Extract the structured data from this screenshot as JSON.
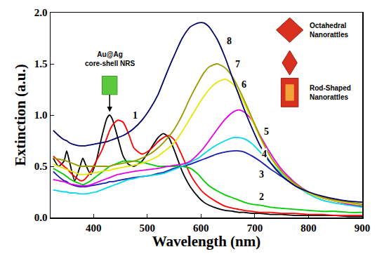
{
  "chart_data": {
    "type": "line",
    "x_label": "Wavelength (nm)",
    "y_label": "Extinction (a.u.)",
    "x": [
      325,
      335,
      345,
      350,
      355,
      365,
      375,
      380,
      385,
      395,
      405,
      415,
      425,
      430,
      435,
      445,
      455,
      465,
      475,
      490,
      505,
      520,
      530,
      540,
      550,
      565,
      580,
      595,
      605,
      615,
      630,
      645,
      660,
      670,
      680,
      695,
      710,
      730,
      750,
      775,
      800,
      825,
      850,
      875,
      900
    ],
    "series": [
      {
        "name": "Au@Ag core-shell NRS",
        "color": "#000000",
        "label_at": [
          430,
          1.55
        ],
        "values": [
          0.58,
          0.5,
          0.55,
          0.65,
          0.55,
          0.36,
          0.5,
          0.58,
          0.52,
          0.42,
          0.55,
          0.78,
          0.97,
          1.0,
          0.96,
          0.78,
          0.6,
          0.52,
          0.5,
          0.55,
          0.66,
          0.78,
          0.82,
          0.78,
          0.66,
          0.45,
          0.3,
          0.2,
          0.15,
          0.12,
          0.09,
          0.07,
          0.06,
          0.05,
          0.05,
          0.04,
          0.04,
          0.03,
          0.03,
          0.02,
          0.02,
          0.02,
          0.02,
          0.01,
          0.01
        ]
      },
      {
        "name": "1",
        "color": "#ff0000",
        "label_at": [
          478,
          1.0
        ],
        "values": [
          0.6,
          0.55,
          0.5,
          0.48,
          0.45,
          0.4,
          0.36,
          0.36,
          0.38,
          0.45,
          0.55,
          0.65,
          0.78,
          0.85,
          0.9,
          0.95,
          0.93,
          0.82,
          0.68,
          0.62,
          0.66,
          0.74,
          0.78,
          0.8,
          0.76,
          0.6,
          0.42,
          0.3,
          0.24,
          0.2,
          0.15,
          0.11,
          0.09,
          0.08,
          0.07,
          0.06,
          0.05,
          0.05,
          0.04,
          0.04,
          0.03,
          0.03,
          0.02,
          0.02,
          0.02
        ]
      },
      {
        "name": "2",
        "color": "#00cc00",
        "label_at": [
          712,
          0.2
        ],
        "values": [
          0.48,
          0.45,
          0.42,
          0.4,
          0.38,
          0.35,
          0.33,
          0.32,
          0.33,
          0.36,
          0.4,
          0.44,
          0.48,
          0.5,
          0.51,
          0.53,
          0.55,
          0.55,
          0.55,
          0.54,
          0.52,
          0.5,
          0.5,
          0.5,
          0.5,
          0.5,
          0.48,
          0.42,
          0.36,
          0.31,
          0.26,
          0.22,
          0.19,
          0.17,
          0.15,
          0.13,
          0.12,
          0.1,
          0.09,
          0.08,
          0.07,
          0.06,
          0.06,
          0.05,
          0.05
        ]
      },
      {
        "name": "3",
        "color": "#1a1ab3",
        "label_at": [
          712,
          0.42
        ],
        "values": [
          0.45,
          0.4,
          0.36,
          0.35,
          0.33,
          0.31,
          0.3,
          0.3,
          0.3,
          0.31,
          0.32,
          0.33,
          0.34,
          0.35,
          0.35,
          0.36,
          0.37,
          0.38,
          0.39,
          0.4,
          0.41,
          0.43,
          0.44,
          0.46,
          0.48,
          0.5,
          0.52,
          0.55,
          0.57,
          0.59,
          0.62,
          0.64,
          0.65,
          0.65,
          0.64,
          0.6,
          0.55,
          0.47,
          0.4,
          0.31,
          0.24,
          0.19,
          0.16,
          0.13,
          0.11
        ]
      },
      {
        "name": "4",
        "color": "#00d8e8",
        "label_at": [
          718,
          0.62
        ],
        "values": [
          0.27,
          0.26,
          0.25,
          0.25,
          0.24,
          0.24,
          0.23,
          0.23,
          0.23,
          0.24,
          0.25,
          0.27,
          0.29,
          0.3,
          0.31,
          0.33,
          0.35,
          0.37,
          0.38,
          0.4,
          0.41,
          0.42,
          0.43,
          0.45,
          0.47,
          0.5,
          0.54,
          0.58,
          0.62,
          0.66,
          0.71,
          0.75,
          0.78,
          0.78,
          0.77,
          0.72,
          0.64,
          0.53,
          0.43,
          0.32,
          0.23,
          0.17,
          0.14,
          0.12,
          0.1
        ]
      },
      {
        "name": "5",
        "color": "#e600e6",
        "label_at": [
          722,
          0.84
        ],
        "values": [
          0.37,
          0.36,
          0.35,
          0.34,
          0.33,
          0.32,
          0.31,
          0.31,
          0.31,
          0.32,
          0.34,
          0.36,
          0.38,
          0.39,
          0.4,
          0.42,
          0.43,
          0.44,
          0.45,
          0.46,
          0.47,
          0.48,
          0.49,
          0.5,
          0.51,
          0.52,
          0.55,
          0.62,
          0.68,
          0.75,
          0.86,
          0.96,
          1.03,
          1.05,
          1.03,
          0.95,
          0.8,
          0.62,
          0.47,
          0.34,
          0.25,
          0.19,
          0.16,
          0.13,
          0.12
        ]
      },
      {
        "name": "6",
        "color": "#e6e600",
        "label_at": [
          680,
          1.3
        ],
        "values": [
          0.52,
          0.5,
          0.48,
          0.47,
          0.46,
          0.44,
          0.42,
          0.42,
          0.42,
          0.43,
          0.44,
          0.45,
          0.46,
          0.46,
          0.47,
          0.48,
          0.49,
          0.5,
          0.51,
          0.53,
          0.56,
          0.6,
          0.64,
          0.68,
          0.73,
          0.84,
          0.97,
          1.1,
          1.18,
          1.25,
          1.32,
          1.35,
          1.3,
          1.22,
          1.12,
          0.95,
          0.78,
          0.58,
          0.44,
          0.32,
          0.24,
          0.19,
          0.16,
          0.14,
          0.12
        ]
      },
      {
        "name": "7",
        "color": "#999900",
        "label_at": [
          668,
          1.5
        ],
        "values": [
          0.58,
          0.57,
          0.56,
          0.55,
          0.54,
          0.52,
          0.5,
          0.5,
          0.5,
          0.5,
          0.5,
          0.5,
          0.5,
          0.5,
          0.51,
          0.52,
          0.53,
          0.54,
          0.55,
          0.58,
          0.62,
          0.68,
          0.73,
          0.79,
          0.86,
          1.0,
          1.17,
          1.32,
          1.41,
          1.47,
          1.5,
          1.46,
          1.36,
          1.26,
          1.15,
          0.97,
          0.79,
          0.59,
          0.45,
          0.33,
          0.25,
          0.2,
          0.17,
          0.15,
          0.13
        ]
      },
      {
        "name": "8",
        "color": "#000066",
        "label_at": [
          652,
          1.72
        ],
        "values": [
          0.85,
          0.8,
          0.76,
          0.75,
          0.73,
          0.71,
          0.7,
          0.7,
          0.7,
          0.71,
          0.72,
          0.73,
          0.74,
          0.75,
          0.76,
          0.78,
          0.8,
          0.83,
          0.87,
          0.95,
          1.06,
          1.2,
          1.33,
          1.46,
          1.58,
          1.75,
          1.86,
          1.9,
          1.9,
          1.86,
          1.74,
          1.56,
          1.34,
          1.2,
          1.06,
          0.87,
          0.7,
          0.53,
          0.41,
          0.31,
          0.25,
          0.21,
          0.18,
          0.16,
          0.15
        ]
      }
    ],
    "annotations": [
      {
        "text": "Octahedral Nanorattles",
        "x": 800,
        "y": 1.83
      },
      {
        "text": "Rod-Shaped Nanorattles",
        "x": 800,
        "y": 1.22
      }
    ],
    "xlim": [
      320,
      900
    ],
    "xticks": [
      400,
      500,
      600,
      700,
      800,
      900
    ],
    "ylim": [
      0,
      2.0
    ],
    "yticks": [
      {
        "value": 0,
        "label": "0.0"
      },
      {
        "value": 0.5,
        "label": "0.5"
      },
      {
        "value": 1.0,
        "label": "1.0"
      },
      {
        "value": 1.5,
        "label": "1.5"
      },
      {
        "value": 2.0,
        "label": "2.0"
      }
    ],
    "grid": false
  }
}
